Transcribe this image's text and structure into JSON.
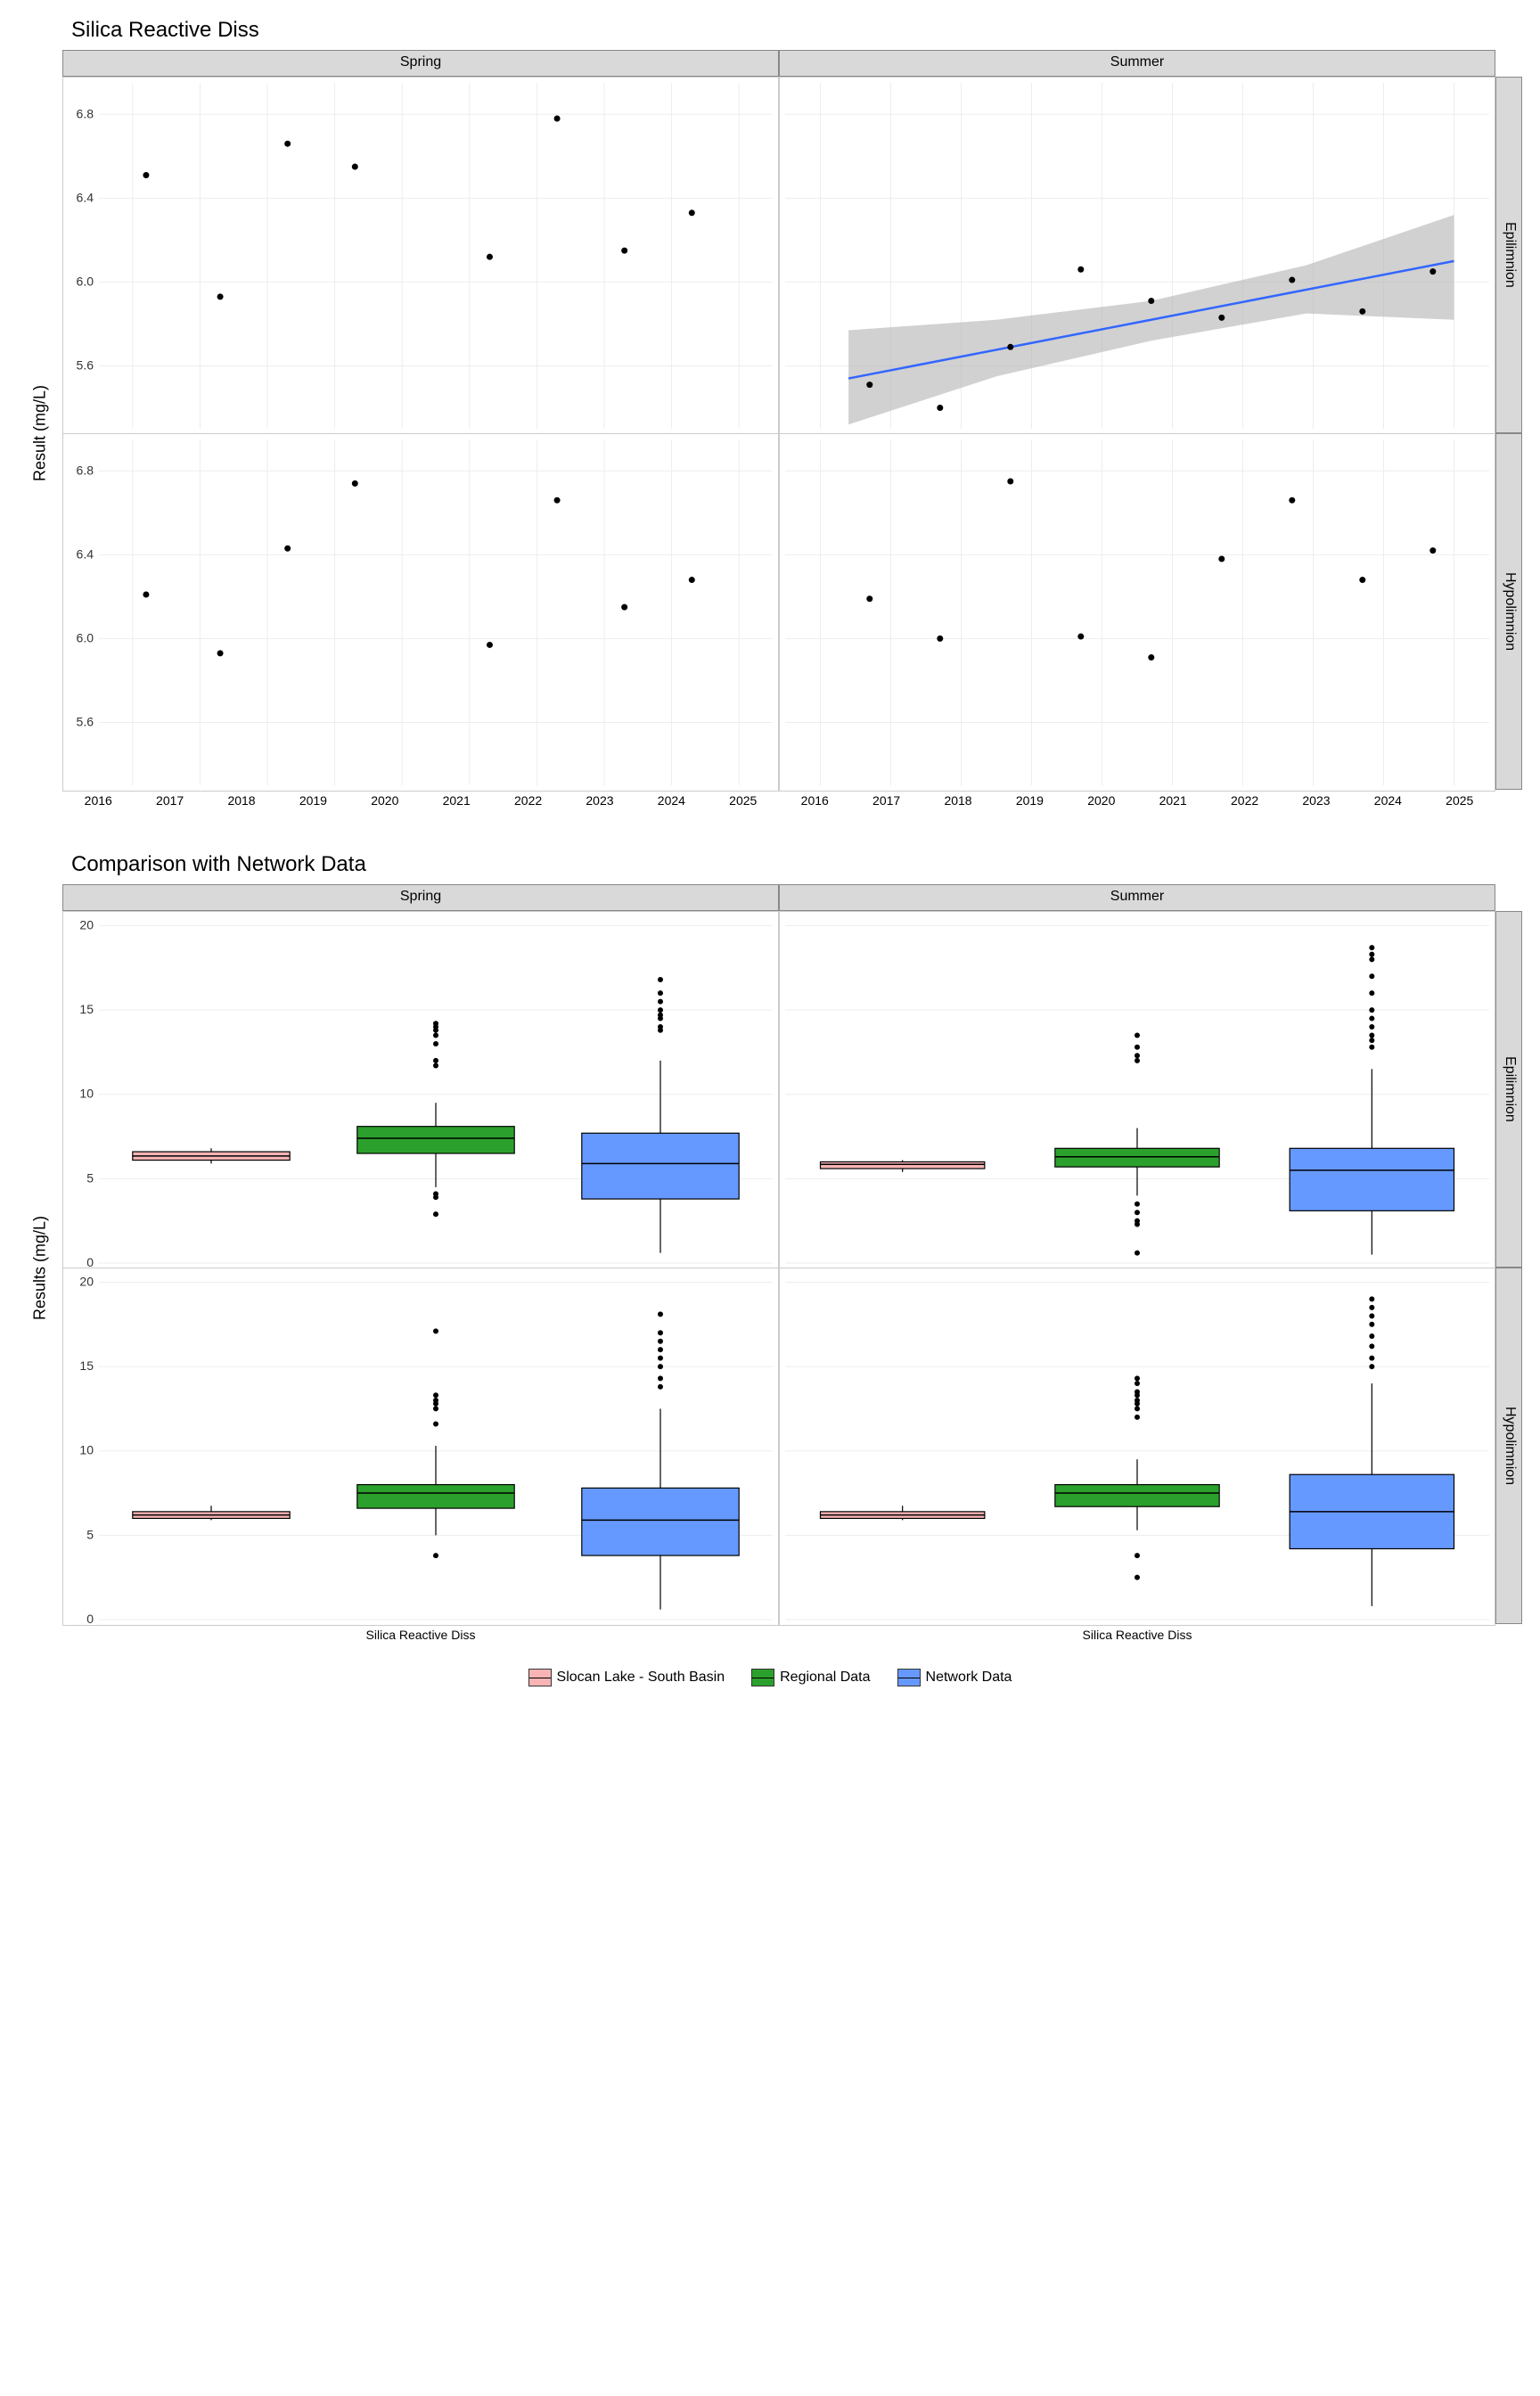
{
  "scatter_chart": {
    "title": "Silica Reactive Diss",
    "y_label": "Result (mg/L)",
    "x_range": [
      2015.5,
      2025.5
    ],
    "y_range": [
      5.3,
      6.95
    ],
    "x_ticks": [
      2016,
      2017,
      2018,
      2019,
      2020,
      2021,
      2022,
      2023,
      2024,
      2025
    ],
    "y_ticks": [
      5.6,
      6.0,
      6.4,
      6.8
    ],
    "col_labels": [
      "Spring",
      "Summer"
    ],
    "row_labels": [
      "Epilimnion",
      "Hypolimnion"
    ],
    "grid_color": "#ededed",
    "point_color": "#000000",
    "point_radius": 3.5,
    "trend_color": "#3366ff",
    "ribbon_color": "#b3b3b3",
    "panels": {
      "spring_epi": {
        "points": [
          [
            2016.2,
            6.51
          ],
          [
            2017.3,
            5.93
          ],
          [
            2018.3,
            6.66
          ],
          [
            2019.3,
            6.55
          ],
          [
            2021.3,
            6.12
          ],
          [
            2022.3,
            6.78
          ],
          [
            2023.3,
            6.15
          ],
          [
            2024.3,
            6.33
          ]
        ]
      },
      "summer_epi": {
        "points": [
          [
            2016.7,
            5.51
          ],
          [
            2017.7,
            5.4
          ],
          [
            2018.7,
            5.69
          ],
          [
            2019.7,
            6.06
          ],
          [
            2020.7,
            5.91
          ],
          [
            2021.7,
            5.83
          ],
          [
            2022.7,
            6.01
          ],
          [
            2023.7,
            5.86
          ],
          [
            2024.7,
            6.05
          ]
        ],
        "trend": {
          "x0": 2016.4,
          "y0": 5.54,
          "x1": 2025.0,
          "y1": 6.1
        },
        "ribbon": [
          [
            2016.4,
            5.32,
            5.77
          ],
          [
            2018.5,
            5.55,
            5.82
          ],
          [
            2020.7,
            5.72,
            5.91
          ],
          [
            2022.9,
            5.85,
            6.08
          ],
          [
            2025.0,
            5.82,
            6.32
          ]
        ]
      },
      "spring_hypo": {
        "points": [
          [
            2016.2,
            6.21
          ],
          [
            2017.3,
            5.93
          ],
          [
            2018.3,
            6.43
          ],
          [
            2019.3,
            6.74
          ],
          [
            2021.3,
            5.97
          ],
          [
            2022.3,
            6.66
          ],
          [
            2023.3,
            6.15
          ],
          [
            2024.3,
            6.28
          ]
        ]
      },
      "summer_hypo": {
        "points": [
          [
            2016.7,
            6.19
          ],
          [
            2017.7,
            6.0
          ],
          [
            2018.7,
            6.75
          ],
          [
            2019.7,
            6.01
          ],
          [
            2020.7,
            5.91
          ],
          [
            2021.7,
            6.38
          ],
          [
            2022.7,
            6.66
          ],
          [
            2023.7,
            6.28
          ],
          [
            2024.7,
            6.42
          ]
        ]
      }
    }
  },
  "box_chart": {
    "title": "Comparison with Network Data",
    "y_label": "Results (mg/L)",
    "x_category": "Silica Reactive Diss",
    "y_range": [
      0,
      20.5
    ],
    "y_ticks": [
      0,
      5,
      10,
      15,
      20
    ],
    "col_labels": [
      "Spring",
      "Summer"
    ],
    "row_labels": [
      "Epilimnion",
      "Hypolimnion"
    ],
    "grid_color": "#ededed",
    "series": [
      {
        "name": "Slocan Lake - South Basin",
        "fill": "#f8b4b4",
        "stroke": "#333"
      },
      {
        "name": "Regional Data",
        "fill": "#2ca02c",
        "stroke": "#333"
      },
      {
        "name": "Network Data",
        "fill": "#6699ff",
        "stroke": "#333"
      }
    ],
    "panels": {
      "spring_epi": {
        "boxes": [
          {
            "min": 5.9,
            "q1": 6.1,
            "med": 6.35,
            "q3": 6.6,
            "max": 6.8,
            "outliers": []
          },
          {
            "min": 4.5,
            "q1": 6.5,
            "med": 7.4,
            "q3": 8.1,
            "max": 9.5,
            "outliers": [
              2.9,
              3.9,
              4.1,
              11.7,
              12.0,
              13.0,
              13.5,
              13.8,
              14.0,
              14.2
            ]
          },
          {
            "min": 0.6,
            "q1": 3.8,
            "med": 5.9,
            "q3": 7.7,
            "max": 12.0,
            "outliers": [
              13.8,
              14.0,
              14.5,
              14.7,
              15.0,
              15.5,
              16.0,
              16.8
            ]
          }
        ]
      },
      "summer_epi": {
        "boxes": [
          {
            "min": 5.4,
            "q1": 5.6,
            "med": 5.85,
            "q3": 6.0,
            "max": 6.1,
            "outliers": []
          },
          {
            "min": 4.0,
            "q1": 5.7,
            "med": 6.3,
            "q3": 6.8,
            "max": 8.0,
            "outliers": [
              0.6,
              2.3,
              2.5,
              3.0,
              3.5,
              12.0,
              12.3,
              12.8,
              13.5
            ]
          },
          {
            "min": 0.5,
            "q1": 3.1,
            "med": 5.5,
            "q3": 6.8,
            "max": 11.5,
            "outliers": [
              12.8,
              13.2,
              13.5,
              14.0,
              14.5,
              15.0,
              16.0,
              17.0,
              18.0,
              18.3,
              18.7
            ]
          }
        ]
      },
      "spring_hypo": {
        "boxes": [
          {
            "min": 5.9,
            "q1": 6.0,
            "med": 6.2,
            "q3": 6.4,
            "max": 6.75,
            "outliers": []
          },
          {
            "min": 5.0,
            "q1": 6.6,
            "med": 7.5,
            "q3": 8.0,
            "max": 10.3,
            "outliers": [
              3.8,
              11.6,
              12.5,
              12.8,
              13.0,
              13.3,
              17.1
            ]
          },
          {
            "min": 0.6,
            "q1": 3.8,
            "med": 5.9,
            "q3": 7.8,
            "max": 12.5,
            "outliers": [
              13.8,
              14.3,
              15.0,
              15.5,
              16.0,
              16.5,
              17.0,
              18.1
            ]
          }
        ]
      },
      "summer_hypo": {
        "boxes": [
          {
            "min": 5.9,
            "q1": 6.0,
            "med": 6.2,
            "q3": 6.4,
            "max": 6.75,
            "outliers": []
          },
          {
            "min": 5.3,
            "q1": 6.7,
            "med": 7.5,
            "q3": 8.0,
            "max": 9.5,
            "outliers": [
              2.5,
              3.8,
              12.0,
              12.5,
              12.8,
              13.0,
              13.3,
              13.5,
              14.0,
              14.3
            ]
          },
          {
            "min": 0.8,
            "q1": 4.2,
            "med": 6.4,
            "q3": 8.6,
            "max": 14.0,
            "outliers": [
              15.0,
              15.5,
              16.2,
              16.8,
              17.5,
              18.0,
              18.5,
              19.0
            ]
          }
        ]
      }
    }
  }
}
